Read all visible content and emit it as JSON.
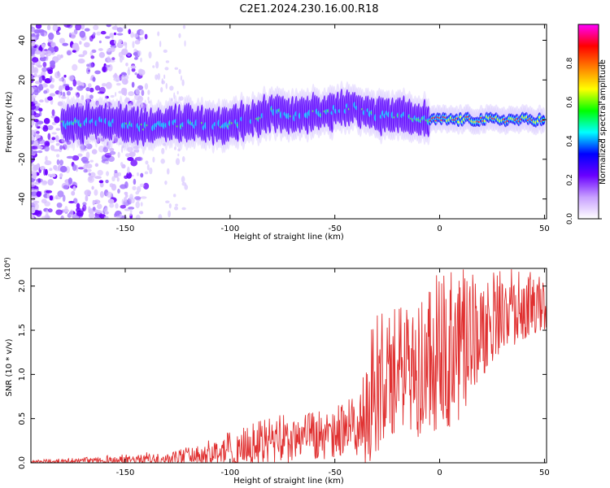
{
  "title": "C2E1.2024.230.16.00.R18",
  "chart_data": [
    {
      "type": "heatmap",
      "xlabel": "Height of straight line (km)",
      "ylabel": "Frequency (Hz)",
      "xlim": [
        -195,
        51
      ],
      "ylim": [
        -50,
        48
      ],
      "xticks": [
        -150,
        -100,
        -50,
        0,
        50
      ],
      "yticks": [
        -40,
        -20,
        0,
        20,
        40
      ],
      "colorbar": {
        "label": "Normalized spectral amplitude",
        "range": [
          0.0,
          1.0
        ],
        "ticks": [
          0.0,
          0.2,
          0.4,
          0.6,
          0.8
        ],
        "colors": [
          "#ffffff",
          "#c8a0ff",
          "#6a00ff",
          "#0000ff",
          "#00ffff",
          "#00ff00",
          "#ffff00",
          "#ff8000",
          "#ff0000",
          "#ff00ff"
        ]
      },
      "ridge": {
        "x": [
          -178,
          -165,
          -150,
          -140,
          -130,
          -120,
          -110,
          -100,
          -90,
          -80,
          -70,
          -60,
          -50,
          -40,
          -30,
          -20,
          -15,
          -10,
          -5,
          0,
          10,
          20,
          30,
          40,
          50
        ],
        "y": [
          -2,
          -1,
          -2,
          -4,
          -2,
          -2,
          -3,
          -2,
          0,
          4,
          2,
          3,
          5,
          6,
          2,
          2,
          3,
          -1,
          0,
          0,
          0,
          0,
          0,
          0,
          0
        ]
      }
    },
    {
      "type": "line",
      "xlabel": "Height of straight line (km)",
      "ylabel": "SNR (10 * v/v)",
      "multiplier": "(x10⁴)",
      "xlim": [
        -195,
        51
      ],
      "ylim": [
        0,
        2.2
      ],
      "xticks": [
        -150,
        -100,
        -50,
        0,
        50
      ],
      "yticks": [
        0.0,
        0.5,
        1.0,
        1.5,
        2.0
      ],
      "color": "#e03030",
      "envelope": {
        "x": [
          -195,
          -170,
          -150,
          -130,
          -120,
          -110,
          -100,
          -90,
          -80,
          -70,
          -60,
          -50,
          -45,
          -40,
          -35,
          -30,
          -25,
          -20,
          -15,
          -10,
          -5,
          0,
          10,
          20,
          30,
          40,
          50
        ],
        "y_mean": [
          0.01,
          0.02,
          0.03,
          0.05,
          0.08,
          0.12,
          0.15,
          0.18,
          0.22,
          0.24,
          0.28,
          0.3,
          0.35,
          0.38,
          0.5,
          0.75,
          0.95,
          0.9,
          1.0,
          0.95,
          1.05,
          1.1,
          1.3,
          1.5,
          1.65,
          1.75,
          1.78
        ],
        "y_max": [
          0.03,
          0.06,
          0.1,
          0.15,
          0.25,
          0.3,
          0.35,
          0.45,
          0.55,
          0.55,
          0.6,
          0.65,
          0.7,
          0.8,
          1.45,
          1.7,
          1.7,
          1.8,
          1.75,
          1.8,
          2.0,
          2.2,
          2.2,
          2.2,
          2.2,
          2.2,
          2.1
        ],
        "y_min": [
          0.0,
          0.0,
          0.0,
          0.0,
          0.0,
          0.0,
          0.0,
          0.0,
          0.0,
          0.02,
          0.05,
          0.05,
          0.1,
          0.1,
          0.15,
          0.25,
          0.35,
          0.3,
          0.35,
          0.3,
          0.4,
          0.5,
          0.4,
          1.0,
          1.3,
          1.4,
          1.5
        ]
      }
    }
  ]
}
